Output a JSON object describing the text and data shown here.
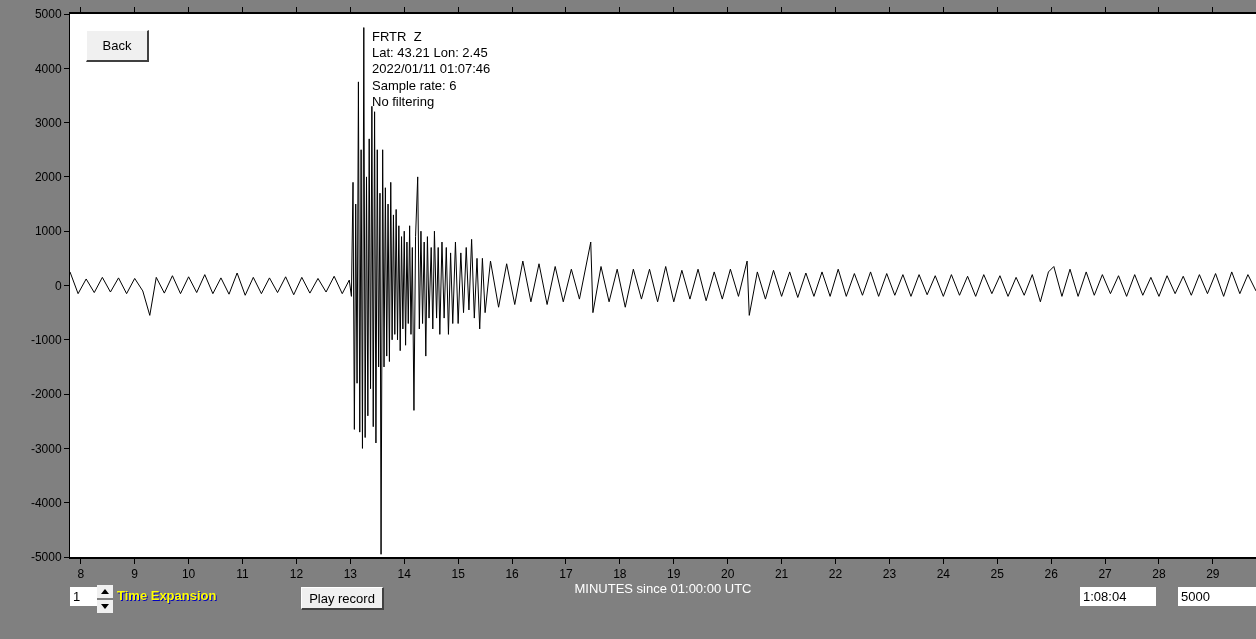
{
  "chart_data": {
    "type": "line",
    "xlabel": "MINUTES since 01:00:00 UTC",
    "annotations": [
      "FRTR  Z",
      "Lat: 43.21 Lon: 2.45",
      "2022/01/11 01:07:46",
      "Sample rate: 6",
      "No filtering",
      "Back",
      "Play record",
      "1",
      "Time Expansion",
      "1:08:04",
      "5000"
    ],
    "x": [
      7.8,
      7.95,
      8.1,
      8.25,
      8.4,
      8.55,
      8.7,
      8.85,
      9.0,
      9.15,
      9.28,
      9.4,
      9.55,
      9.7,
      9.85,
      10.0,
      10.15,
      10.3,
      10.45,
      10.6,
      10.75,
      10.9,
      11.05,
      11.2,
      11.35,
      11.5,
      11.65,
      11.8,
      11.95,
      12.1,
      12.25,
      12.4,
      12.55,
      12.7,
      12.85,
      12.98,
      13.02,
      13.05,
      13.075,
      13.1,
      13.125,
      13.15,
      13.175,
      13.2,
      13.225,
      13.25,
      13.275,
      13.3,
      13.325,
      13.35,
      13.375,
      13.4,
      13.425,
      13.45,
      13.475,
      13.5,
      13.525,
      13.55,
      13.57,
      13.6,
      13.625,
      13.65,
      13.675,
      13.7,
      13.725,
      13.75,
      13.775,
      13.8,
      13.825,
      13.85,
      13.875,
      13.9,
      13.925,
      13.95,
      13.975,
      14.0,
      14.025,
      14.05,
      14.075,
      14.1,
      14.125,
      14.15,
      14.18,
      14.21,
      14.25,
      14.28,
      14.31,
      14.34,
      14.37,
      14.4,
      14.43,
      14.46,
      14.5,
      14.53,
      14.56,
      14.6,
      14.63,
      14.66,
      14.7,
      14.74,
      14.78,
      14.82,
      14.86,
      14.9,
      14.95,
      15.0,
      15.05,
      15.1,
      15.15,
      15.2,
      15.25,
      15.3,
      15.35,
      15.4,
      15.45,
      15.5,
      15.6,
      15.75,
      15.9,
      16.05,
      16.2,
      16.35,
      16.5,
      16.65,
      16.8,
      16.95,
      17.1,
      17.25,
      17.46,
      17.5,
      17.65,
      17.8,
      17.95,
      18.1,
      18.25,
      18.4,
      18.55,
      18.7,
      18.85,
      19.0,
      19.15,
      19.3,
      19.45,
      19.6,
      19.75,
      19.9,
      20.05,
      20.2,
      20.36,
      20.4,
      20.55,
      20.7,
      20.85,
      21.0,
      21.15,
      21.3,
      21.45,
      21.6,
      21.75,
      21.9,
      22.05,
      22.2,
      22.35,
      22.5,
      22.65,
      22.8,
      22.95,
      23.1,
      23.25,
      23.4,
      23.55,
      23.7,
      23.85,
      24.0,
      24.15,
      24.3,
      24.45,
      24.6,
      24.75,
      24.9,
      25.05,
      25.2,
      25.35,
      25.5,
      25.65,
      25.8,
      25.95,
      26.05,
      26.2,
      26.35,
      26.5,
      26.65,
      26.8,
      26.95,
      27.1,
      27.25,
      27.4,
      27.55,
      27.7,
      27.85,
      28.0,
      28.15,
      28.3,
      28.45,
      28.6,
      28.75,
      28.9,
      29.05,
      29.2,
      29.35,
      29.5,
      29.65,
      29.8
    ],
    "series": [
      {
        "color": "#000000",
        "values": [
          250,
          -150,
          120,
          -130,
          150,
          -120,
          140,
          -150,
          130,
          -100,
          -550,
          150,
          -140,
          180,
          -150,
          160,
          -130,
          200,
          -150,
          140,
          -160,
          230,
          -180,
          150,
          -150,
          140,
          -130,
          160,
          -170,
          150,
          -140,
          130,
          -120,
          170,
          -150,
          100,
          -200,
          1900,
          -2650,
          1500,
          -1800,
          3750,
          -2700,
          2500,
          -3000,
          4750,
          -2800,
          2000,
          -2400,
          2700,
          -1900,
          3300,
          -2600,
          3200,
          -2900,
          2500,
          -1500,
          1700,
          -4950,
          2500,
          -1500,
          1800,
          -1300,
          1500,
          -1400,
          1900,
          -1000,
          1300,
          -900,
          1400,
          -1000,
          1100,
          -1200,
          900,
          -800,
          1000,
          -1100,
          800,
          -700,
          1100,
          -900,
          700,
          -2300,
          900,
          2000,
          -800,
          1000,
          -700,
          800,
          -1300,
          900,
          -600,
          700,
          -800,
          1000,
          -600,
          700,
          -900,
          800,
          -600,
          700,
          -900,
          600,
          -700,
          800,
          -700,
          600,
          -500,
          700,
          -450,
          850,
          -600,
          500,
          -800,
          500,
          -500,
          450,
          -400,
          400,
          -350,
          450,
          -300,
          400,
          -350,
          350,
          -300,
          300,
          -250,
          800,
          -500,
          350,
          -300,
          300,
          -400,
          300,
          -250,
          300,
          -300,
          350,
          -300,
          280,
          -250,
          300,
          -280,
          250,
          -250,
          300,
          -200,
          450,
          -550,
          250,
          -250,
          280,
          -200,
          250,
          -220,
          230,
          -200,
          250,
          -200,
          300,
          -200,
          220,
          -180,
          250,
          -200,
          220,
          -180,
          200,
          -200,
          200,
          -170,
          180,
          -200,
          200,
          -180,
          170,
          -200,
          200,
          -150,
          180,
          -200,
          150,
          -180,
          200,
          -300,
          250,
          350,
          -200,
          300,
          -200,
          250,
          -180,
          200,
          -150,
          180,
          -200,
          200,
          -180,
          150,
          -200,
          180,
          -150,
          170,
          -180,
          200,
          -150,
          220,
          -200,
          250,
          -150,
          200,
          -100
        ]
      }
    ],
    "xlim": [
      7.8,
      29.8
    ],
    "xticks": [
      8,
      9,
      10,
      11,
      12,
      13,
      14,
      15,
      16,
      17,
      18,
      19,
      20,
      21,
      22,
      23,
      24,
      25,
      26,
      27,
      28,
      29
    ],
    "ylim": [
      -5000,
      5000
    ],
    "yticks": [
      5000,
      4000,
      3000,
      2000,
      1000,
      0,
      -1000,
      -2000,
      -3000,
      -4000,
      -5000
    ],
    "grid": false
  }
}
